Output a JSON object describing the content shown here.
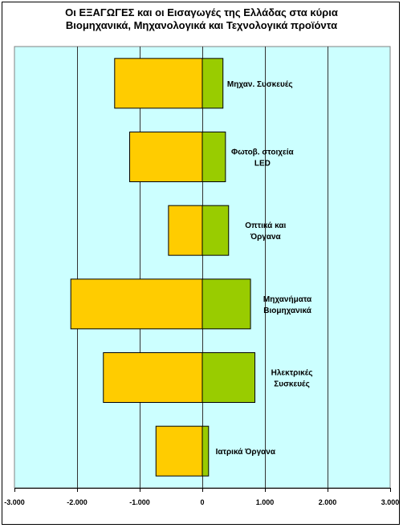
{
  "chart_data": {
    "type": "bar",
    "orientation": "horizontal",
    "title": [
      "Οι ΕΞΑΓΩΓΕΣ και οι Εισαγωγές της Ελλάδας στα κύρια",
      "Βιομηχανικά, Μηχανολογικά και Τεχνολογικά προϊόντα"
    ],
    "categories": [
      [
        "Μηχαν. Συσκευές"
      ],
      [
        "Φωτοβ. στοιχεία",
        "LED"
      ],
      [
        "Οπτικά και",
        "Όργανα"
      ],
      [
        "Μηχανήματα",
        "Βιομηχανικά"
      ],
      [
        "Ηλεκτρικές",
        "Συσκευές"
      ],
      [
        "Ιατρικά Όργανα"
      ]
    ],
    "series": [
      {
        "values": [
          -1400,
          -1160,
          -540,
          -2100,
          -1580,
          -740
        ],
        "color": "#FFCC00"
      },
      {
        "values": [
          330,
          370,
          420,
          770,
          840,
          100
        ],
        "color": "#99CC00"
      }
    ],
    "xlim": [
      -3000,
      3000
    ],
    "xticks": [
      -3000,
      -2000,
      -1000,
      0,
      1000,
      2000,
      3000
    ],
    "xtick_labels": [
      "-3.000",
      "-2.000",
      "-1.000",
      "0",
      "1.000",
      "2.000",
      "3.000"
    ],
    "grid": true,
    "plot_background": "#CCFFFF",
    "gridline_color": "#333333",
    "bar_outline_color": "#000000"
  }
}
